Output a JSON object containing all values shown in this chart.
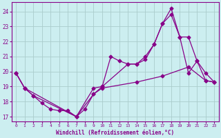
{
  "xlabel": "Windchill (Refroidissement éolien,°C)",
  "bg_color": "#cceef0",
  "grid_color": "#aacccc",
  "line_color": "#880088",
  "xlim": [
    -0.5,
    23.5
  ],
  "ylim": [
    16.7,
    24.6
  ],
  "yticks": [
    17,
    18,
    19,
    20,
    21,
    22,
    23,
    24
  ],
  "xticks": [
    0,
    1,
    2,
    3,
    4,
    5,
    6,
    7,
    8,
    9,
    10,
    11,
    12,
    13,
    14,
    15,
    16,
    17,
    18,
    19,
    20,
    21,
    22,
    23
  ],
  "s1_x": [
    0,
    1,
    2,
    3,
    4,
    5,
    6,
    7,
    8,
    9,
    10,
    11,
    12,
    13,
    14,
    15,
    16,
    17,
    18,
    19,
    20,
    21,
    22,
    23
  ],
  "s1_y": [
    19.9,
    18.9,
    18.4,
    17.9,
    17.5,
    17.4,
    17.4,
    17.0,
    17.5,
    18.5,
    19.0,
    21.0,
    20.7,
    20.5,
    20.5,
    20.8,
    21.8,
    23.2,
    23.8,
    22.3,
    19.9,
    20.7,
    19.4,
    19.3
  ],
  "s2_x": [
    0,
    1,
    2,
    7,
    9,
    10,
    13,
    14,
    15,
    16,
    17,
    18,
    19,
    20,
    21,
    22,
    23
  ],
  "s2_y": [
    19.9,
    18.9,
    18.4,
    17.0,
    18.9,
    19.0,
    20.5,
    20.5,
    21.0,
    21.8,
    23.2,
    24.2,
    22.3,
    22.3,
    20.7,
    19.9,
    19.3
  ],
  "s3_x": [
    0,
    1,
    7,
    9,
    10,
    14,
    17,
    20,
    22,
    23
  ],
  "s3_y": [
    19.9,
    18.9,
    17.0,
    18.5,
    18.9,
    19.3,
    19.7,
    20.3,
    19.4,
    19.3
  ]
}
